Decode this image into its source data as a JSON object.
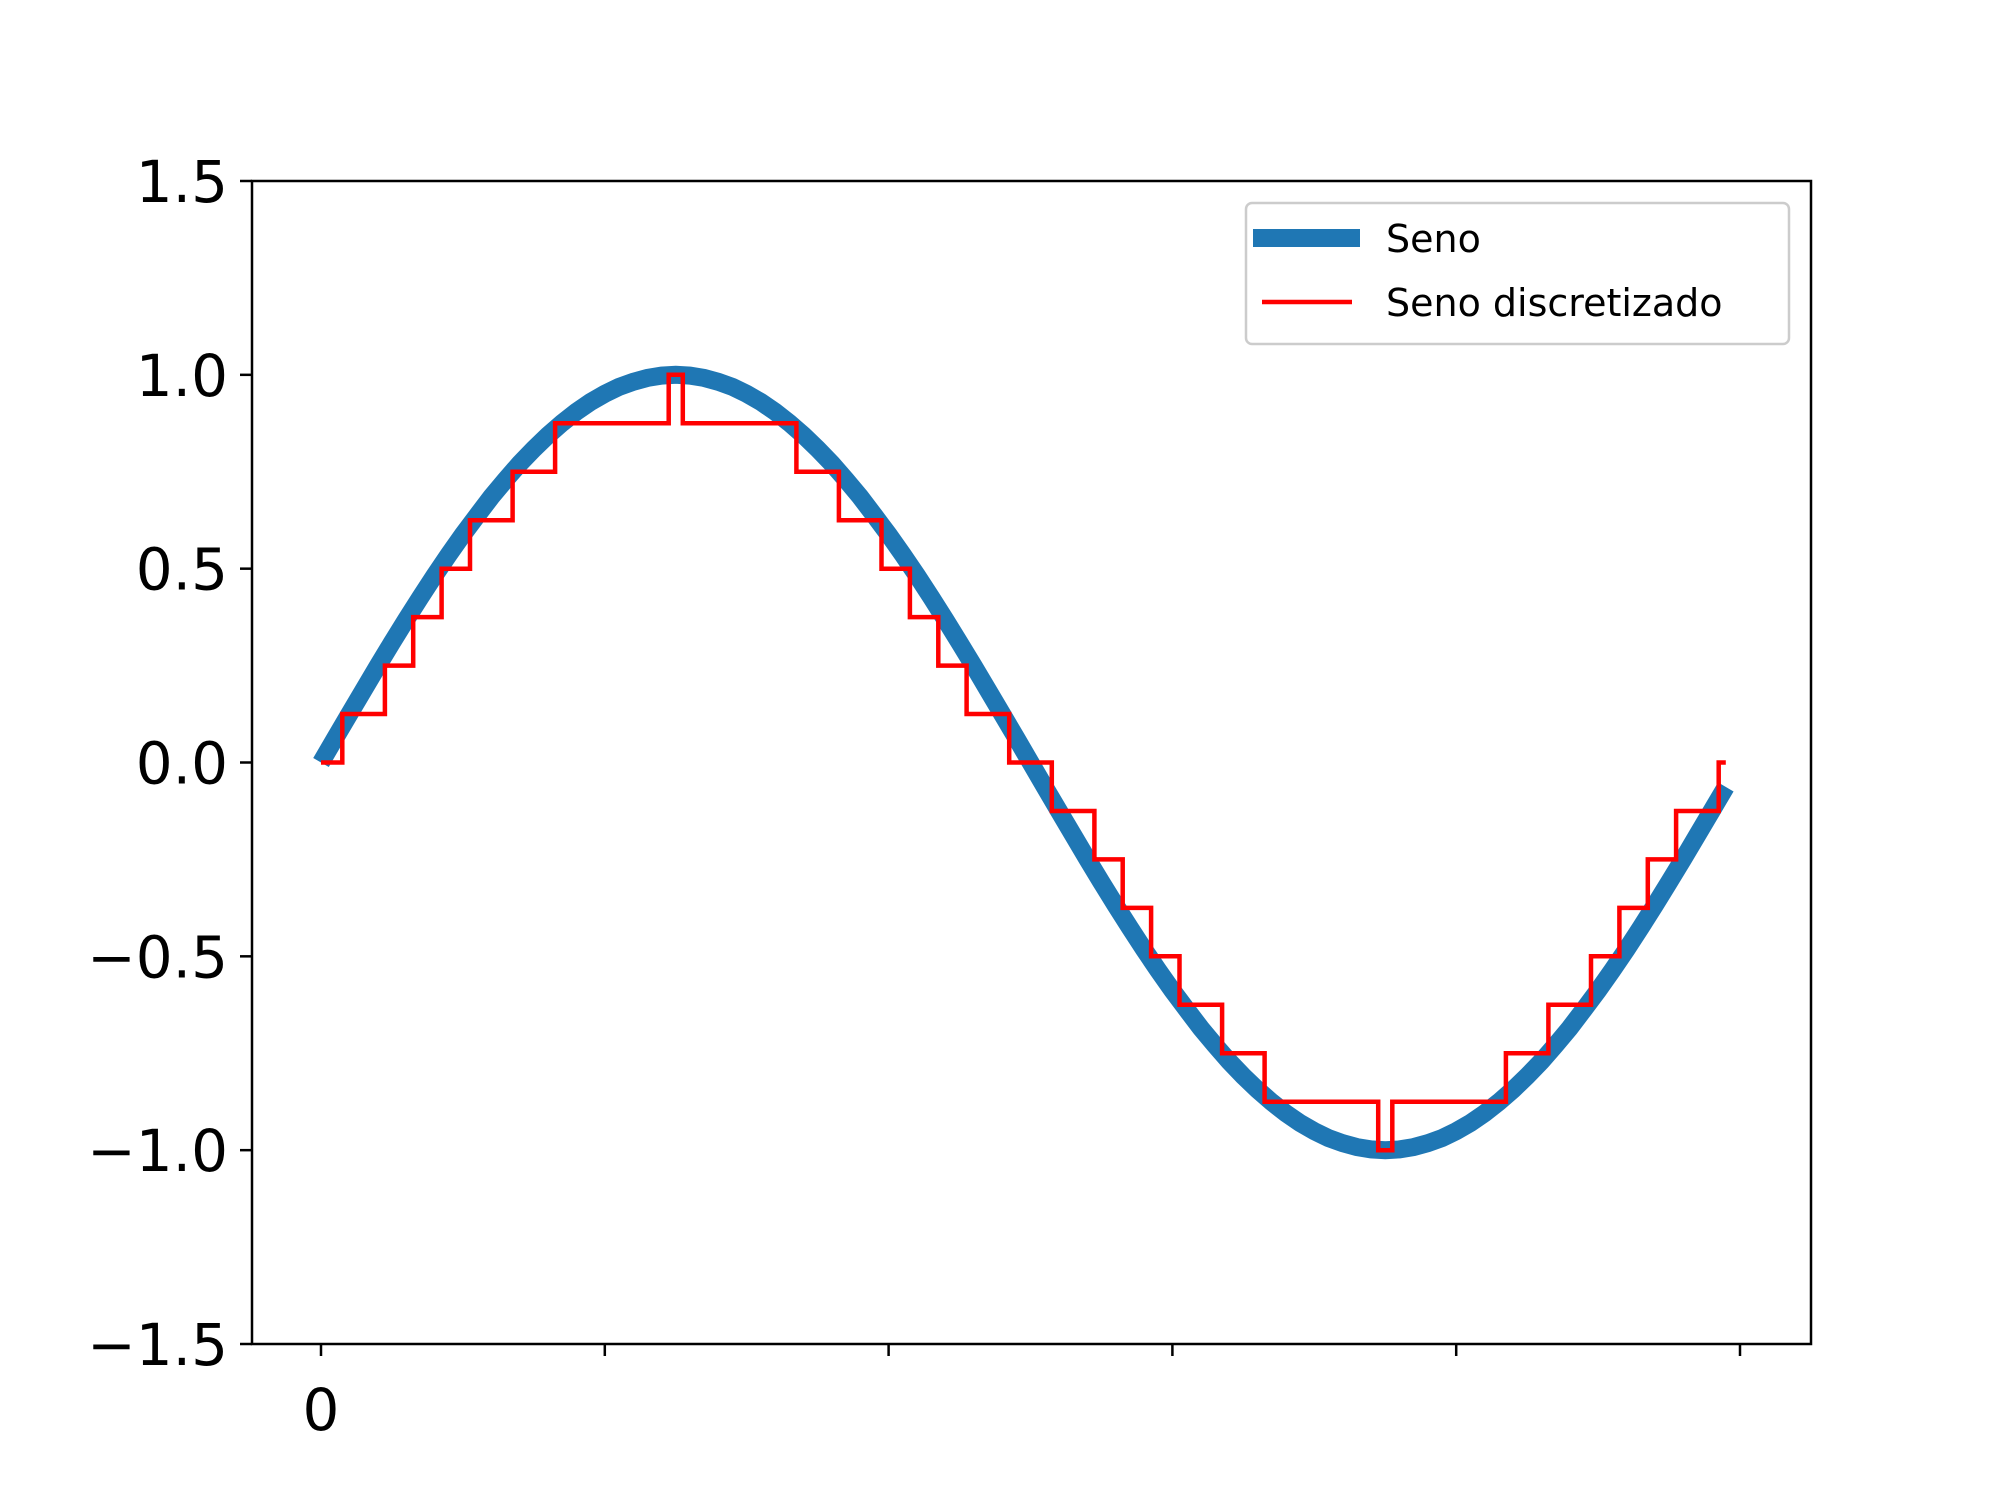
{
  "chart_data": {
    "type": "line",
    "title": "",
    "xlabel": "",
    "ylabel": "",
    "xlim": [
      -4.9,
      105
    ],
    "ylim": [
      -1.5,
      1.5
    ],
    "grid": false,
    "legend_placement": "top-right",
    "x_ticks": [
      0,
      20,
      40,
      60,
      80,
      100
    ],
    "x_tick_labels": [
      "0",
      "",
      "",
      "",
      "",
      ""
    ],
    "y_ticks": [
      1.5,
      1.0,
      0.5,
      0.0,
      -0.5,
      -1.0,
      -1.5
    ],
    "y_tick_labels": [
      "1.5",
      "1.0",
      "0.5",
      "0.0",
      "−0.5",
      "−1.0",
      "−1.5"
    ],
    "x": [
      0,
      1,
      2,
      3,
      4,
      5,
      6,
      7,
      8,
      9,
      10,
      11,
      12,
      13,
      14,
      15,
      16,
      17,
      18,
      19,
      20,
      21,
      22,
      23,
      24,
      25,
      26,
      27,
      28,
      29,
      30,
      31,
      32,
      33,
      34,
      35,
      36,
      37,
      38,
      39,
      40,
      41,
      42,
      43,
      44,
      45,
      46,
      47,
      48,
      49,
      50,
      51,
      52,
      53,
      54,
      55,
      56,
      57,
      58,
      59,
      60,
      61,
      62,
      63,
      64,
      65,
      66,
      67,
      68,
      69,
      70,
      71,
      72,
      73,
      74,
      75,
      76,
      77,
      78,
      79,
      80,
      81,
      82,
      83,
      84,
      85,
      86,
      87,
      88,
      89,
      90,
      91,
      92,
      93,
      94,
      95,
      96,
      97,
      98,
      99
    ],
    "series": [
      {
        "name": "Seno",
        "color": "#1f77b4",
        "style": "line",
        "values": [
          0,
          0.063,
          0.125,
          0.187,
          0.249,
          0.309,
          0.368,
          0.426,
          0.482,
          0.536,
          0.588,
          0.637,
          0.685,
          0.729,
          0.771,
          0.809,
          0.844,
          0.876,
          0.905,
          0.93,
          0.951,
          0.969,
          0.982,
          0.992,
          0.998,
          1.0,
          0.998,
          0.992,
          0.982,
          0.969,
          0.951,
          0.93,
          0.905,
          0.876,
          0.844,
          0.809,
          0.771,
          0.729,
          0.685,
          0.637,
          0.588,
          0.536,
          0.482,
          0.426,
          0.368,
          0.309,
          0.249,
          0.187,
          0.125,
          0.063,
          0,
          -0.063,
          -0.125,
          -0.187,
          -0.249,
          -0.309,
          -0.368,
          -0.426,
          -0.482,
          -0.536,
          -0.588,
          -0.637,
          -0.685,
          -0.729,
          -0.771,
          -0.809,
          -0.844,
          -0.876,
          -0.905,
          -0.93,
          -0.951,
          -0.969,
          -0.982,
          -0.992,
          -0.998,
          -1.0,
          -0.998,
          -0.992,
          -0.982,
          -0.969,
          -0.951,
          -0.93,
          -0.905,
          -0.876,
          -0.844,
          -0.809,
          -0.771,
          -0.729,
          -0.685,
          -0.637,
          -0.588,
          -0.536,
          -0.482,
          -0.426,
          -0.368,
          -0.309,
          -0.249,
          -0.187,
          -0.125,
          -0.063
        ]
      },
      {
        "name": "Seno discretizado",
        "color": "#ff0000",
        "style": "step-mid",
        "values": [
          0,
          0,
          0.125,
          0.125,
          0.125,
          0.25,
          0.25,
          0.375,
          0.375,
          0.5,
          0.5,
          0.625,
          0.625,
          0.625,
          0.75,
          0.75,
          0.75,
          0.875,
          0.875,
          0.875,
          0.875,
          0.875,
          0.875,
          0.875,
          0.875,
          1.0,
          0.875,
          0.875,
          0.875,
          0.875,
          0.875,
          0.875,
          0.875,
          0.875,
          0.75,
          0.75,
          0.75,
          0.625,
          0.625,
          0.625,
          0.5,
          0.5,
          0.375,
          0.375,
          0.25,
          0.25,
          0.125,
          0.125,
          0.125,
          0,
          0,
          0,
          -0.125,
          -0.125,
          -0.125,
          -0.25,
          -0.25,
          -0.375,
          -0.375,
          -0.5,
          -0.5,
          -0.625,
          -0.625,
          -0.625,
          -0.75,
          -0.75,
          -0.75,
          -0.875,
          -0.875,
          -0.875,
          -0.875,
          -0.875,
          -0.875,
          -0.875,
          -0.875,
          -1.0,
          -0.875,
          -0.875,
          -0.875,
          -0.875,
          -0.875,
          -0.875,
          -0.875,
          -0.875,
          -0.75,
          -0.75,
          -0.75,
          -0.625,
          -0.625,
          -0.625,
          -0.5,
          -0.5,
          -0.375,
          -0.375,
          -0.25,
          -0.25,
          -0.125,
          -0.125,
          -0.125,
          0
        ]
      }
    ]
  }
}
